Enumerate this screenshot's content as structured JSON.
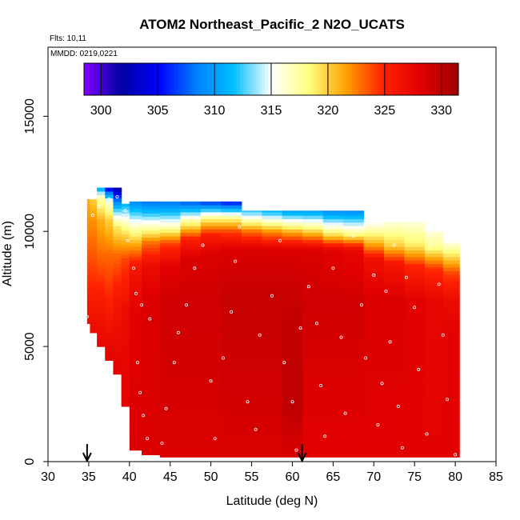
{
  "chart_data": {
    "type": "heatmap",
    "title": "ATOM2 Northeast_Pacific_2 N2O_UCATS",
    "flights_text": "Flts: 10,11",
    "mmdd_text": "MMDD: 0219,0221",
    "xlabel": "Latitude (deg N)",
    "ylabel": "Altitude (m)",
    "xlim": [
      30,
      85
    ],
    "ylim": [
      0,
      18000
    ],
    "xticks": [
      "30",
      "35",
      "40",
      "45",
      "50",
      "55",
      "60",
      "65",
      "70",
      "75",
      "80",
      "85"
    ],
    "yticks": [
      "0",
      "5000",
      "10000",
      "15000"
    ],
    "colorbar": {
      "range": [
        298.5,
        331.5
      ],
      "ticks": [
        "300",
        "305",
        "310",
        "315",
        "320",
        "325",
        "330"
      ],
      "colors": [
        "#7f00ff",
        "#0000a0",
        "#0000ff",
        "#0080ff",
        "#00bfff",
        "#ffffff",
        "#ffff80",
        "#ffa000",
        "#ff2000",
        "#e00000",
        "#a00000"
      ]
    },
    "arrows_latitude": [
      34.8,
      61.2
    ],
    "columns": [
      {
        "lat": 34.8,
        "bottom": 6000,
        "top": 11400,
        "profile": [
          [
            6000,
            327
          ],
          [
            7500,
            325
          ],
          [
            9000,
            323.5
          ],
          [
            10500,
            322
          ],
          [
            11400,
            321
          ]
        ]
      },
      {
        "lat": 35.5,
        "bottom": 5600,
        "top": 11400,
        "profile": [
          [
            5600,
            327
          ],
          [
            7500,
            325
          ],
          [
            9000,
            323.5
          ],
          [
            10500,
            322
          ],
          [
            11400,
            320
          ]
        ]
      },
      {
        "lat": 36.5,
        "bottom": 5000,
        "top": 11900,
        "profile": [
          [
            5000,
            327.5
          ],
          [
            7500,
            325
          ],
          [
            9000,
            323
          ],
          [
            10500,
            321
          ],
          [
            11500,
            317
          ],
          [
            11900,
            310
          ]
        ]
      },
      {
        "lat": 37.5,
        "bottom": 4400,
        "top": 11900,
        "profile": [
          [
            4400,
            328
          ],
          [
            7000,
            325
          ],
          [
            9000,
            323
          ],
          [
            10500,
            320
          ],
          [
            11300,
            316
          ],
          [
            11900,
            304
          ]
        ]
      },
      {
        "lat": 38.5,
        "bottom": 3800,
        "top": 11900,
        "profile": [
          [
            3800,
            328
          ],
          [
            7000,
            326
          ],
          [
            9000,
            323
          ],
          [
            10200,
            319
          ],
          [
            11000,
            312
          ],
          [
            11900,
            302
          ]
        ]
      },
      {
        "lat": 39.5,
        "bottom": 2400,
        "top": 11200,
        "profile": [
          [
            2400,
            328
          ],
          [
            6500,
            327
          ],
          [
            8800,
            324
          ],
          [
            9800,
            320
          ],
          [
            10500,
            316
          ],
          [
            11200,
            311
          ]
        ]
      },
      {
        "lat": 40.5,
        "bottom": 500,
        "top": 11300,
        "profile": [
          [
            500,
            328.5
          ],
          [
            6500,
            328
          ],
          [
            8500,
            326
          ],
          [
            9500,
            321
          ],
          [
            10300,
            316
          ],
          [
            11300,
            309
          ]
        ]
      },
      {
        "lat": 42.5,
        "bottom": 300,
        "top": 11300,
        "profile": [
          [
            300,
            328.5
          ],
          [
            7000,
            328.5
          ],
          [
            8500,
            327
          ],
          [
            9500,
            323
          ],
          [
            10300,
            316
          ],
          [
            11300,
            308
          ]
        ]
      },
      {
        "lat": 45,
        "bottom": 200,
        "top": 11300,
        "profile": [
          [
            200,
            328.5
          ],
          [
            7000,
            329
          ],
          [
            8500,
            328
          ],
          [
            9500,
            324
          ],
          [
            10300,
            316
          ],
          [
            11300,
            308
          ]
        ]
      },
      {
        "lat": 47.5,
        "bottom": 200,
        "top": 11300,
        "profile": [
          [
            200,
            328.5
          ],
          [
            7000,
            329
          ],
          [
            8800,
            328.5
          ],
          [
            9700,
            325
          ],
          [
            10500,
            317
          ],
          [
            11300,
            307
          ]
        ]
      },
      {
        "lat": 50,
        "bottom": 200,
        "top": 11300,
        "profile": [
          [
            200,
            328.5
          ],
          [
            7000,
            329
          ],
          [
            9000,
            328.5
          ],
          [
            9900,
            325
          ],
          [
            10600,
            318
          ],
          [
            11300,
            306
          ]
        ]
      },
      {
        "lat": 52.5,
        "bottom": 200,
        "top": 11300,
        "profile": [
          [
            200,
            328.5
          ],
          [
            7000,
            329.5
          ],
          [
            9200,
            328.5
          ],
          [
            10000,
            324
          ],
          [
            10600,
            318
          ],
          [
            11300,
            305
          ]
        ]
      },
      {
        "lat": 55,
        "bottom": 200,
        "top": 10900,
        "profile": [
          [
            200,
            328.5
          ],
          [
            7000,
            329.5
          ],
          [
            9200,
            328.5
          ],
          [
            10000,
            323
          ],
          [
            10900,
            312
          ]
        ]
      },
      {
        "lat": 57.5,
        "bottom": 200,
        "top": 10900,
        "profile": [
          [
            200,
            328.5
          ],
          [
            7000,
            329.5
          ],
          [
            9200,
            328.5
          ],
          [
            10000,
            322
          ],
          [
            10900,
            311
          ]
        ]
      },
      {
        "lat": 60,
        "bottom": 200,
        "top": 10900,
        "profile": [
          [
            200,
            328.5
          ],
          [
            2500,
            330
          ],
          [
            7000,
            329.5
          ],
          [
            9200,
            328.5
          ],
          [
            10000,
            321
          ],
          [
            10900,
            310
          ]
        ]
      },
      {
        "lat": 62.5,
        "bottom": 200,
        "top": 10900,
        "profile": [
          [
            200,
            328
          ],
          [
            7000,
            329
          ],
          [
            9200,
            328.5
          ],
          [
            10000,
            320
          ],
          [
            10900,
            310
          ]
        ]
      },
      {
        "lat": 65,
        "bottom": 200,
        "top": 10900,
        "profile": [
          [
            200,
            328
          ],
          [
            7000,
            329
          ],
          [
            9200,
            328
          ],
          [
            9900,
            319
          ],
          [
            10900,
            309
          ]
        ]
      },
      {
        "lat": 67.5,
        "bottom": 200,
        "top": 10900,
        "profile": [
          [
            200,
            328
          ],
          [
            7000,
            329
          ],
          [
            9200,
            327.5
          ],
          [
            9900,
            318
          ],
          [
            10900,
            309
          ]
        ]
      },
      {
        "lat": 70,
        "bottom": 200,
        "top": 10400,
        "profile": [
          [
            200,
            328
          ],
          [
            7000,
            328.5
          ],
          [
            8800,
            326.5
          ],
          [
            9500,
            321
          ],
          [
            10400,
            315
          ]
        ]
      },
      {
        "lat": 72.5,
        "bottom": 200,
        "top": 10400,
        "profile": [
          [
            200,
            328
          ],
          [
            7000,
            328.5
          ],
          [
            8600,
            326
          ],
          [
            9400,
            320
          ],
          [
            10400,
            316
          ]
        ]
      },
      {
        "lat": 75,
        "bottom": 200,
        "top": 10400,
        "profile": [
          [
            200,
            328
          ],
          [
            7000,
            328
          ],
          [
            8500,
            325
          ],
          [
            9400,
            319
          ],
          [
            10400,
            316
          ]
        ]
      },
      {
        "lat": 77.5,
        "bottom": 200,
        "top": 10000,
        "profile": [
          [
            200,
            328
          ],
          [
            7000,
            327.5
          ],
          [
            8400,
            324.5
          ],
          [
            9300,
            318
          ],
          [
            10000,
            316
          ]
        ]
      },
      {
        "lat": 79.5,
        "bottom": 200,
        "top": 9500,
        "profile": [
          [
            200,
            328
          ],
          [
            5500,
            328
          ],
          [
            7000,
            327
          ],
          [
            8200,
            324
          ],
          [
            9000,
            319
          ],
          [
            9500,
            316
          ]
        ]
      }
    ],
    "samples": [
      [
        34.8,
        6300
      ],
      [
        35.5,
        10700
      ],
      [
        36.2,
        11100
      ],
      [
        37.5,
        11400
      ],
      [
        38.5,
        11500
      ],
      [
        39.5,
        10900
      ],
      [
        39.8,
        9600
      ],
      [
        40.5,
        8400
      ],
      [
        40.8,
        7300
      ],
      [
        41.5,
        6800
      ],
      [
        42.5,
        6200
      ],
      [
        41,
        4300
      ],
      [
        41.3,
        3000
      ],
      [
        41.7,
        2000
      ],
      [
        42.2,
        1000
      ],
      [
        44,
        800
      ],
      [
        44.5,
        2300
      ],
      [
        45.5,
        4300
      ],
      [
        46,
        5600
      ],
      [
        47,
        6800
      ],
      [
        48,
        8400
      ],
      [
        49,
        9400
      ],
      [
        50,
        3500
      ],
      [
        50.5,
        1000
      ],
      [
        51.5,
        4500
      ],
      [
        52.5,
        6500
      ],
      [
        53,
        8700
      ],
      [
        53.5,
        10200
      ],
      [
        54.5,
        2600
      ],
      [
        55.5,
        1400
      ],
      [
        56,
        5500
      ],
      [
        57.5,
        7200
      ],
      [
        58.5,
        9600
      ],
      [
        59,
        4300
      ],
      [
        60,
        2600
      ],
      [
        60.5,
        500
      ],
      [
        61,
        5800
      ],
      [
        62,
        7600
      ],
      [
        63,
        6000
      ],
      [
        63.5,
        3300
      ],
      [
        64,
        1100
      ],
      [
        65,
        8400
      ],
      [
        66,
        5400
      ],
      [
        66.5,
        2100
      ],
      [
        67.5,
        9800
      ],
      [
        68.5,
        6800
      ],
      [
        69,
        4500
      ],
      [
        70,
        8100
      ],
      [
        70.5,
        1600
      ],
      [
        71,
        3400
      ],
      [
        71.5,
        7400
      ],
      [
        72,
        5200
      ],
      [
        72.5,
        9400
      ],
      [
        73,
        2400
      ],
      [
        73.5,
        600
      ],
      [
        74,
        8000
      ],
      [
        75,
        6700
      ],
      [
        75.5,
        4000
      ],
      [
        76.5,
        1200
      ],
      [
        77,
        9400
      ],
      [
        78,
        7700
      ],
      [
        78.5,
        5500
      ],
      [
        79,
        2700
      ],
      [
        79.5,
        9600
      ],
      [
        80,
        300
      ]
    ]
  }
}
